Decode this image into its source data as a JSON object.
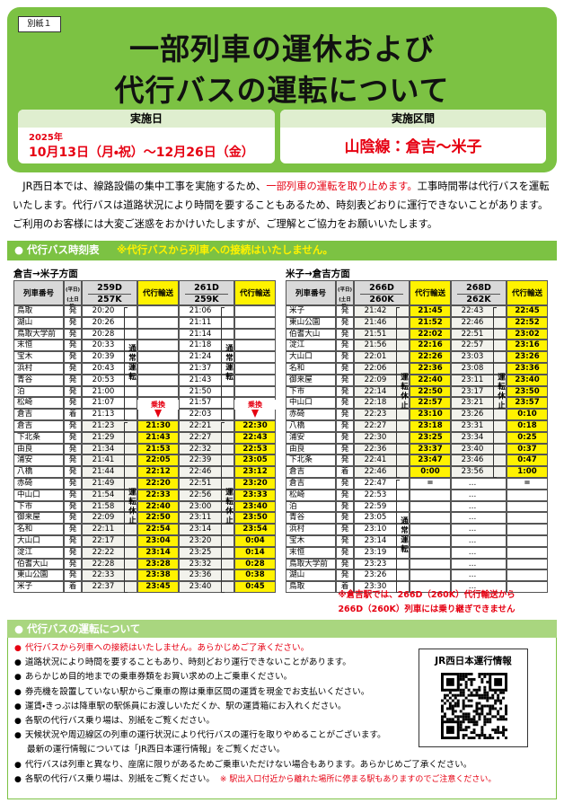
{
  "header": {
    "attachment": "別紙１",
    "title_line1": "一部列車の運休および",
    "title_line2": "代行バスの運転について",
    "date_label": "実施日",
    "date_year": "2025年",
    "date_range": "10月13日（月・祝）～12月26日（金）",
    "section_label": "実施区間",
    "section": "山陰線：倉吉～米子"
  },
  "intro": [
    {
      "text": "JR西日本では、線路設備の集中工事を実施するため、"
    },
    {
      "text": "一部列車の運転を取り止めます。",
      "color": "#e60012"
    },
    {
      "text": "工事時間帯は代行バスを運転いたします。代行バスは道路状況により時間を要することもあるため、時刻表どおりに運行できないことがあります。ご利用のお客様には大変ご迷惑をおかけいたしますが、ご理解とご協力をお願いいたします。"
    }
  ],
  "timetable_section": {
    "title": "代行バス時刻表",
    "note": "※代行バスから列車への接続はいたしません。"
  },
  "tables": [
    {
      "direction": "倉吉→米子方面",
      "col_train": "列車番号",
      "weekday": "(平日)",
      "holiday": "(土日祝)",
      "trains": [
        [
          "259D",
          "257K"
        ],
        [
          "261D",
          "259K"
        ]
      ],
      "bus": "代行輸送",
      "normal": "通常運転",
      "suspended": "運転休止",
      "transfer": "乗換",
      "rows": [
        [
          "鳥取",
          "発",
          "20:20",
          null,
          "21:06",
          null
        ],
        [
          "湖山",
          "発",
          "20:26",
          null,
          "21:11",
          null
        ],
        [
          "鳥取大学前",
          "発",
          "20:28",
          null,
          "21:14",
          null
        ],
        [
          "末恒",
          "発",
          "20:33",
          null,
          "21:18",
          null
        ],
        [
          "宝木",
          "発",
          "20:39",
          null,
          "21:24",
          null
        ],
        [
          "浜村",
          "発",
          "20:43",
          null,
          "21:37",
          null
        ],
        [
          "青谷",
          "発",
          "20:53",
          null,
          "21:43",
          null
        ],
        [
          "泊",
          "発",
          "21:00",
          null,
          "21:50",
          null
        ],
        [
          "松崎",
          "発",
          "21:07",
          null,
          "21:57",
          null
        ],
        [
          "倉吉",
          "着",
          "21:13",
          null,
          "22:03",
          null
        ],
        [
          "倉吉",
          "発",
          "21:23",
          "21:30",
          "22:21",
          "22:30"
        ],
        [
          "下北条",
          "発",
          "21:29",
          "21:43",
          "22:27",
          "22:43"
        ],
        [
          "由良",
          "発",
          "21:34",
          "21:53",
          "22:32",
          "22:53"
        ],
        [
          "浦安",
          "発",
          "21:41",
          "22:05",
          "22:39",
          "23:05"
        ],
        [
          "八橋",
          "発",
          "21:44",
          "22:12",
          "22:46",
          "23:12"
        ],
        [
          "赤碕",
          "発",
          "21:49",
          "22:20",
          "22:51",
          "23:20"
        ],
        [
          "中山口",
          "発",
          "21:54",
          "22:33",
          "22:56",
          "23:33"
        ],
        [
          "下市",
          "発",
          "21:58",
          "22:40",
          "23:00",
          "23:40"
        ],
        [
          "御来屋",
          "発",
          "22:09",
          "22:50",
          "23:11",
          "23:50"
        ],
        [
          "名和",
          "発",
          "22:11",
          "22:54",
          "23:14",
          "23:54"
        ],
        [
          "大山口",
          "発",
          "22:17",
          "23:04",
          "23:20",
          "0:04"
        ],
        [
          "淀江",
          "発",
          "22:22",
          "23:14",
          "23:25",
          "0:14"
        ],
        [
          "伯耆大山",
          "発",
          "22:28",
          "23:28",
          "23:32",
          "0:28"
        ],
        [
          "東山公園",
          "発",
          "22:33",
          "23:38",
          "23:36",
          "0:38"
        ],
        [
          "米子",
          "着",
          "22:37",
          "23:45",
          "23:40",
          "0:45"
        ]
      ]
    },
    {
      "direction": "米子→倉吉方面",
      "col_train": "列車番号",
      "weekday": "(平日)",
      "holiday": "(土日祝)",
      "trains": [
        [
          "266D",
          "260K"
        ],
        [
          "268D",
          "262K"
        ]
      ],
      "bus": "代行輸送",
      "normal": "通常運転",
      "suspended": "運転休止",
      "rows": [
        [
          "米子",
          "発",
          "21:42",
          "21:45",
          "22:43",
          "22:45"
        ],
        [
          "東山公園",
          "発",
          "21:46",
          "21:52",
          "22:46",
          "22:52"
        ],
        [
          "伯耆大山",
          "発",
          "21:51",
          "22:02",
          "22:51",
          "23:02"
        ],
        [
          "淀江",
          "発",
          "21:56",
          "22:16",
          "22:57",
          "23:16"
        ],
        [
          "大山口",
          "発",
          "22:01",
          "22:26",
          "23:03",
          "23:26"
        ],
        [
          "名和",
          "発",
          "22:06",
          "22:36",
          "23:08",
          "23:36"
        ],
        [
          "御来屋",
          "発",
          "22:09",
          "22:40",
          "23:11",
          "23:40"
        ],
        [
          "下市",
          "発",
          "22:14",
          "22:50",
          "23:17",
          "23:50"
        ],
        [
          "中山口",
          "発",
          "22:18",
          "22:57",
          "23:21",
          "23:57"
        ],
        [
          "赤碕",
          "発",
          "22:23",
          "23:10",
          "23:26",
          "0:10"
        ],
        [
          "八橋",
          "発",
          "22:27",
          "23:18",
          "23:31",
          "0:18"
        ],
        [
          "浦安",
          "発",
          "22:30",
          "23:25",
          "23:34",
          "0:25"
        ],
        [
          "由良",
          "発",
          "22:36",
          "23:37",
          "23:40",
          "0:37"
        ],
        [
          "下北条",
          "発",
          "22:41",
          "23:47",
          "23:46",
          "0:47"
        ],
        [
          "倉吉",
          "着",
          "22:46",
          "0:00",
          "23:56",
          "1:00"
        ],
        [
          "倉吉",
          "発",
          "22:47",
          "=",
          "…",
          "="
        ],
        [
          "松崎",
          "発",
          "22:53",
          null,
          "…",
          null
        ],
        [
          "泊",
          "発",
          "22:59",
          null,
          "…",
          null
        ],
        [
          "青谷",
          "発",
          "23:05",
          null,
          "…",
          null
        ],
        [
          "浜村",
          "発",
          "23:10",
          null,
          "…",
          null
        ],
        [
          "宝木",
          "発",
          "23:14",
          null,
          "…",
          null
        ],
        [
          "末恒",
          "発",
          "23:19",
          null,
          "…",
          null
        ],
        [
          "鳥取大学前",
          "発",
          "23:23",
          null,
          "…",
          null
        ],
        [
          "湖山",
          "発",
          "23:26",
          null,
          "…",
          null
        ],
        [
          "鳥取",
          "着",
          "23:30",
          null,
          "…",
          null
        ]
      ]
    }
  ],
  "table_note": [
    "※倉吉駅では、266D（260K）代行輸送から",
    "266D（260K）列車には乗り継ぎできません"
  ],
  "info": {
    "title": "代行バスの運転について",
    "qr_label": "JR西日本運行情報",
    "items": [
      {
        "text": "代行バスから列車への接続はいたしません。あらかじめご了承ください。",
        "color": "#e60012"
      },
      {
        "text": "道路状況により時間を要することもあり、時刻どおり運行できないことがあります。"
      },
      {
        "text": "あらかじめ目的地までの乗車券類をお買い求めの上ご乗車ください。"
      },
      {
        "text": "券売機を設置していない駅からご乗車の際は乗車区間の運賃を現金でお支払いください。"
      },
      {
        "text": "運賃・きっぷは降車駅の駅係員にお渡しいただくか、駅の運賃箱にお入れください。"
      },
      {
        "text": "各駅の代行バス乗り場は、別紙をご覧ください。"
      },
      {
        "text": "天候状況や周辺線区の列車の運行状況により代行バスの運行を取りやめることがございます。",
        "sub": "最新の運行情報については「JR西日本運行情報」をご覧ください。"
      },
      {
        "text": "代行バスは列車と異なり、座席に限りがあるためご乗車いただけない場合もあります。あらかじめご了承ください。"
      },
      {
        "text": "各駅の代行バス乗り場は、別紙をご覧ください。",
        "extra": "※ 駅出入口付近から離れた場所に停まる駅もありますのでご注意ください。",
        "extra_color": "#e60012"
      }
    ]
  }
}
